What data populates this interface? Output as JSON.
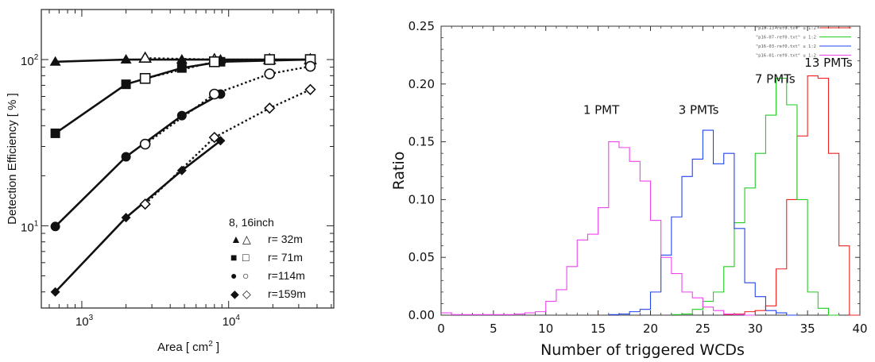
{
  "chart_data": [
    {
      "type": "line",
      "xlabel": "Area [ cm",
      "xlabel_sup": "2",
      "xlabel_close": " ]",
      "ylabel": "Detection Efficiency [ % ]",
      "xscale": "log",
      "yscale": "log",
      "xlim": [
        530,
        52000
      ],
      "ylim": [
        3.2,
        200
      ],
      "x_ticks": [
        {
          "base": "10",
          "exp": "3",
          "value": 1000
        },
        {
          "base": "10",
          "exp": "4",
          "value": 10000
        }
      ],
      "y_ticks": [
        {
          "base": "10",
          "exp": "1",
          "value": 10
        },
        {
          "base": "10",
          "exp": "2",
          "value": 100
        }
      ],
      "legend": {
        "title": "8, 16inch",
        "placement": "bottom-right",
        "entries": [
          {
            "filled": "▲",
            "open": "△",
            "label": "r=  32m"
          },
          {
            "filled": "■",
            "open": "□",
            "label": "r=  71m"
          },
          {
            "filled": "●",
            "open": "○",
            "label": "r=114m"
          },
          {
            "filled": "◆",
            "open": "◇",
            "label": "r=159m"
          }
        ]
      },
      "series": [
        {
          "marker": "triangle",
          "fill": "filled",
          "style": "solid",
          "x": [
            660,
            2000,
            4800,
            8800,
            36000
          ],
          "y": [
            97,
            100,
            100,
            100,
            100
          ]
        },
        {
          "marker": "triangle",
          "fill": "open",
          "style": "dotted",
          "x": [
            2700,
            8000,
            19000,
            36000
          ],
          "y": [
            102,
            100,
            100,
            100
          ]
        },
        {
          "marker": "square",
          "fill": "filled",
          "style": "solid",
          "x": [
            660,
            2000,
            4800,
            8800,
            36000
          ],
          "y": [
            36,
            71,
            89,
            97,
            100
          ]
        },
        {
          "marker": "square",
          "fill": "open",
          "style": "dotted",
          "x": [
            2700,
            8000,
            19000,
            36000
          ],
          "y": [
            77,
            97,
            100,
            100
          ]
        },
        {
          "marker": "circle",
          "fill": "filled",
          "style": "solid",
          "x": [
            660,
            2000,
            4800,
            8800
          ],
          "y": [
            9.9,
            26,
            46,
            62
          ]
        },
        {
          "marker": "circle",
          "fill": "open",
          "style": "dotted",
          "x": [
            2700,
            8000,
            19000,
            36000
          ],
          "y": [
            31,
            62,
            82,
            91
          ]
        },
        {
          "marker": "diamond",
          "fill": "filled",
          "style": "solid",
          "x": [
            660,
            2000,
            4800,
            8800
          ],
          "y": [
            4.0,
            11.2,
            21.5,
            32.5
          ]
        },
        {
          "marker": "diamond",
          "fill": "open",
          "style": "dotted",
          "x": [
            2700,
            8000,
            19000,
            36000
          ],
          "y": [
            13.5,
            34,
            51,
            66
          ]
        }
      ]
    },
    {
      "type": "histogram",
      "xlabel": "Number of triggered WCDs",
      "ylabel": "Ratio",
      "xlim": [
        0,
        40
      ],
      "ylim": [
        0,
        0.25
      ],
      "x_ticks": [
        "0",
        "5",
        "10",
        "15",
        "20",
        "25",
        "30",
        "35",
        "40"
      ],
      "y_ticks": [
        "0.00",
        "0.05",
        "0.10",
        "0.15",
        "0.20",
        "0.25"
      ],
      "bin_width": 1,
      "legend": {
        "placement": "top-right",
        "entries": [
          "\"p16-13-ref0.txt\" u 1:2",
          "\"p16-07-ref0.txt\" u 1:2",
          "\"p16-03-ref0.txt\" u 1:2",
          "\"p16-01-ref0.txt\" u 1:2"
        ]
      },
      "annotations": [
        {
          "text": "1 PMT",
          "x": 15.3,
          "y": 0.174
        },
        {
          "text": "3 PMTs",
          "x": 24.6,
          "y": 0.174
        },
        {
          "text": "7 PMTs",
          "x": 31.9,
          "y": 0.201
        },
        {
          "text": "13 PMTs",
          "x": 37.0,
          "y": 0.215
        }
      ],
      "series": [
        {
          "name": "13 PMTs",
          "color": "#ee2222",
          "start": 27,
          "values": [
            0.0005,
            0.001,
            0.003,
            0.004,
            0.008,
            0.04,
            0.1,
            0.155,
            0.207,
            0.205,
            0.14,
            0.06,
            0.0
          ]
        },
        {
          "name": "7 PMTs",
          "color": "#22cc22",
          "start": 22,
          "values": [
            0.0005,
            0.001,
            0.005,
            0.012,
            0.02,
            0.042,
            0.08,
            0.11,
            0.14,
            0.173,
            0.205,
            0.182,
            0.1,
            0.02,
            0.006,
            0.0
          ]
        },
        {
          "name": "3 PMTs",
          "color": "#2244ee",
          "start": 16,
          "values": [
            0.0005,
            0.001,
            0.003,
            0.005,
            0.02,
            0.052,
            0.085,
            0.12,
            0.135,
            0.16,
            0.131,
            0.14,
            0.075,
            0.028,
            0.016,
            0.004,
            0.002,
            0.0
          ]
        },
        {
          "name": "1 PMT",
          "color": "#ee44ee",
          "start": 0,
          "values": [
            0.002,
            0.0005,
            0.0005,
            0.0005,
            0.0005,
            0.0005,
            0.0005,
            0.001,
            0.002,
            0.003,
            0.012,
            0.022,
            0.042,
            0.065,
            0.07,
            0.093,
            0.15,
            0.145,
            0.133,
            0.116,
            0.082,
            0.05,
            0.036,
            0.02,
            0.015,
            0.007,
            0.004,
            0.001,
            0.0005,
            0.0
          ]
        }
      ]
    }
  ]
}
